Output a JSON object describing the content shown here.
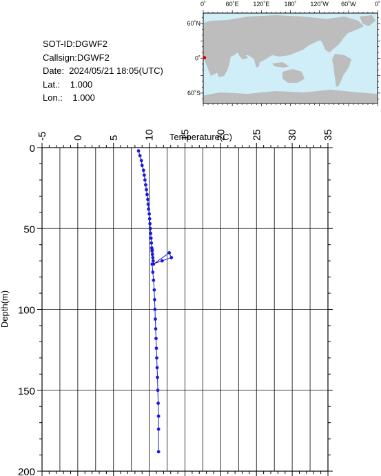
{
  "info": {
    "sot_id": "SOT-ID:DGWF2",
    "callsign": "Callsign:DGWF2",
    "date": "Date:  2024/05/21 18:05(UTC)",
    "lat": "Lat.:    1.000",
    "lon": "Lon.:    1.000"
  },
  "map": {
    "top_labels": [
      "0˚",
      "60˚E",
      "120˚E",
      "180˚",
      "120˚W",
      "60˚W",
      "0˚"
    ],
    "lat_labels": [
      "60˚N",
      "0˚",
      "60˚S"
    ],
    "lon_values": [
      0,
      60,
      120,
      180,
      240,
      300,
      360
    ],
    "lat_values": [
      60,
      0,
      -60
    ],
    "ocean_color": "#cfeef7",
    "land_color": "#bdbdbd",
    "marker_color": "#e00000",
    "marker": {
      "lon": 1.0,
      "lat": 1.0
    }
  },
  "chart_data": {
    "type": "line",
    "xlabel": "Temperature(C)",
    "ylabel": "Depth(m)",
    "xlim": [
      -5,
      35
    ],
    "ylim": [
      0,
      200
    ],
    "x_ticks": [
      -5,
      0,
      5,
      10,
      15,
      20,
      25,
      30,
      35
    ],
    "y_ticks": [
      0,
      50,
      100,
      150,
      200
    ],
    "grid": true,
    "color": "#1a1adb",
    "series": [
      {
        "x": [
          8.5,
          8.7,
          8.9,
          9.0,
          9.2,
          9.3,
          9.4,
          9.5,
          9.6,
          9.7,
          9.8,
          9.85,
          9.9,
          10.0,
          10.05,
          10.1,
          10.15,
          10.2,
          10.25,
          10.3,
          10.35,
          10.4,
          10.4,
          10.45,
          10.5,
          10.55,
          10.6,
          12.8,
          13.1,
          11.8,
          10.4,
          10.5,
          10.6,
          10.7,
          10.75,
          10.8,
          10.85,
          10.9,
          10.95,
          11.0,
          11.05,
          11.1,
          11.15,
          11.2,
          11.25,
          11.3,
          11.3,
          11.3
        ],
        "y": [
          2,
          5,
          8,
          11,
          14,
          17,
          20,
          23,
          26,
          29,
          32,
          35,
          38,
          41,
          44,
          47,
          50,
          53,
          56,
          59,
          62,
          63,
          64,
          66,
          68,
          70,
          72,
          65,
          68,
          70,
          72,
          77,
          82,
          88,
          94,
          100,
          106,
          112,
          118,
          124,
          130,
          136,
          142,
          150,
          158,
          166,
          174,
          188
        ]
      }
    ]
  }
}
